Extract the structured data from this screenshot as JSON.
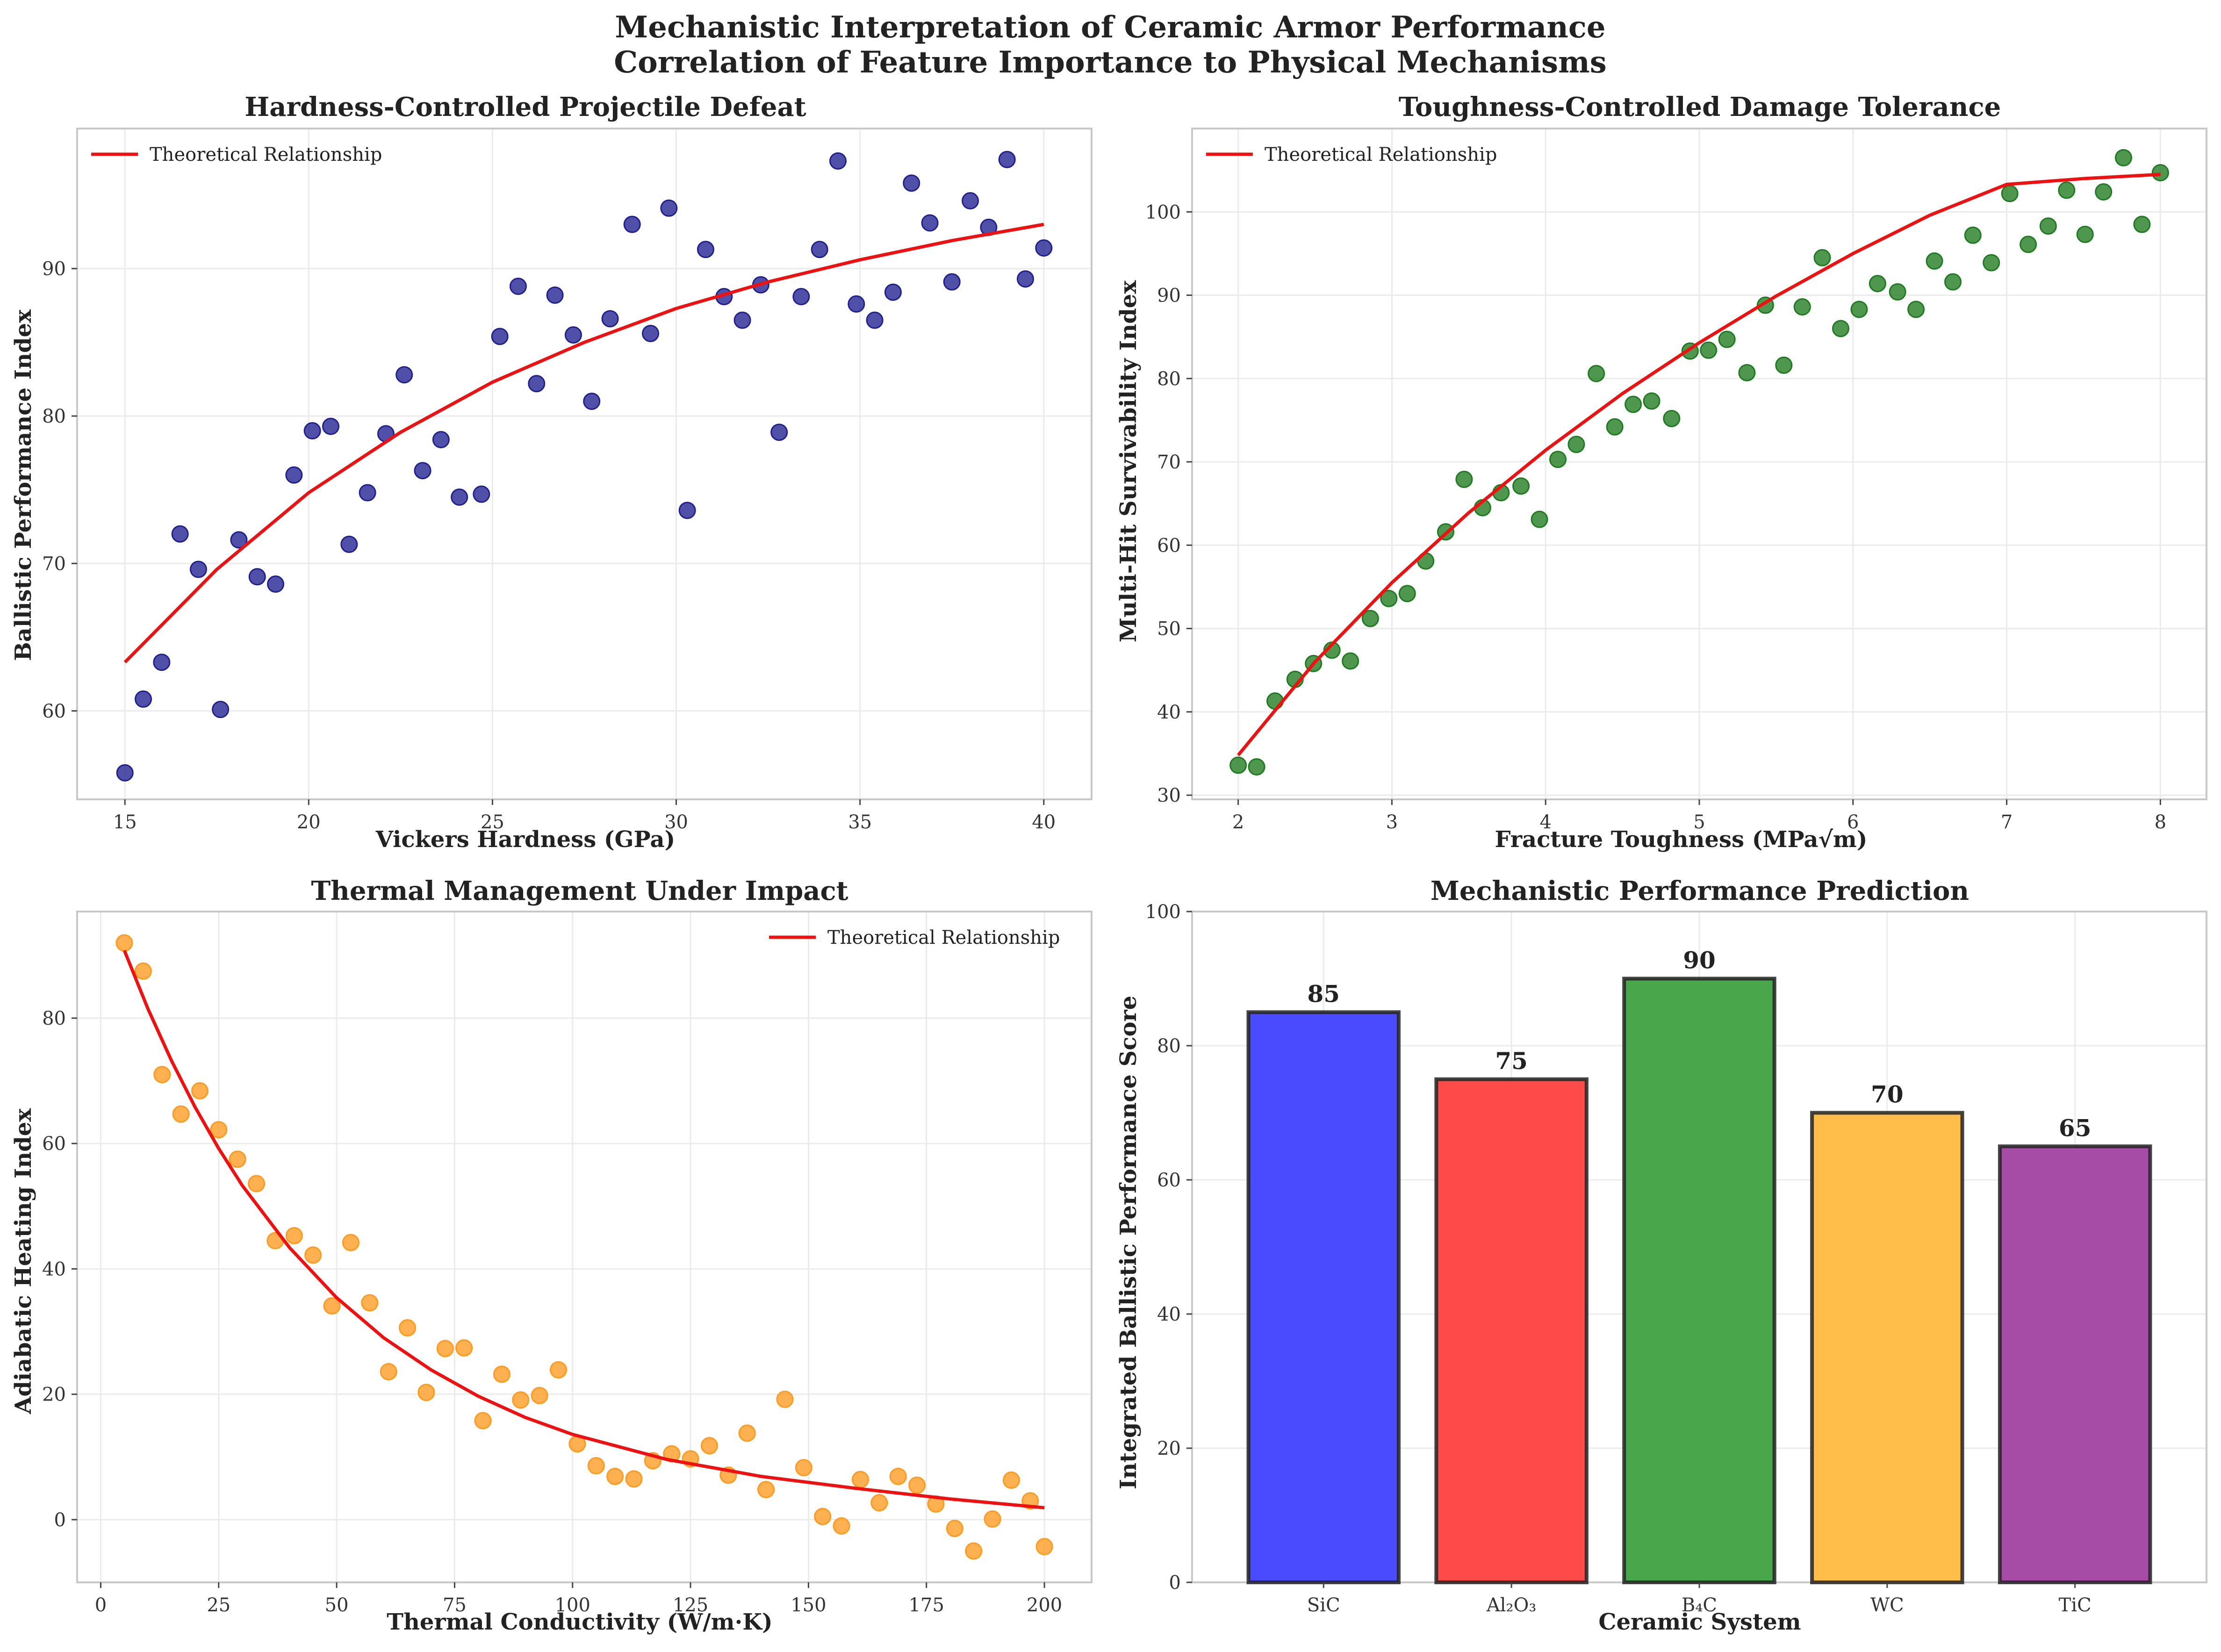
{
  "figure": {
    "title_line1": "Mechanistic Interpretation of Ceramic Armor Performance",
    "title_line2": "Correlation of Feature Importance to Physical Mechanisms"
  },
  "chart_data": [
    {
      "type": "scatter",
      "title": "Hardness-Controlled Projectile Defeat",
      "xlabel": "Vickers Hardness (GPa)",
      "ylabel": "Ballistic Performance Index",
      "xlim": [
        13.7,
        41.3
      ],
      "ylim": [
        54,
        99.5
      ],
      "xticks": [
        15,
        20,
        25,
        30,
        35,
        40
      ],
      "yticks": [
        60,
        70,
        80,
        90
      ],
      "grid": true,
      "legend": {
        "position": "top-left",
        "entries": [
          "Theoretical Relationship"
        ]
      },
      "point_color": "#1f1f8f",
      "line_color": "#ee1111",
      "series": [
        {
          "kind": "points",
          "x": [
            15.0,
            15.5,
            16.0,
            16.5,
            17.0,
            17.6,
            18.1,
            18.6,
            19.1,
            19.6,
            20.1,
            20.6,
            21.1,
            21.6,
            22.1,
            22.6,
            23.1,
            23.6,
            24.1,
            24.7,
            25.2,
            25.7,
            26.2,
            26.7,
            27.2,
            27.7,
            28.2,
            28.8,
            29.3,
            29.8,
            30.3,
            30.8,
            31.3,
            31.8,
            32.3,
            32.8,
            33.4,
            33.9,
            34.4,
            34.9,
            35.4,
            35.9,
            36.4,
            36.9,
            37.5,
            38.0,
            38.5,
            39.0,
            39.5,
            40.0
          ],
          "y": [
            55.8,
            60.8,
            63.3,
            72.0,
            69.6,
            60.1,
            71.6,
            69.1,
            68.6,
            76.0,
            79.0,
            79.3,
            71.3,
            74.8,
            78.8,
            82.8,
            76.3,
            78.4,
            74.5,
            74.7,
            85.4,
            88.8,
            82.2,
            88.2,
            85.5,
            81.0,
            86.6,
            93.0,
            85.6,
            94.1,
            73.6,
            91.3,
            88.1,
            86.5,
            88.9,
            78.9,
            88.1,
            91.3,
            97.3,
            87.6,
            86.5,
            88.4,
            95.8,
            93.1,
            89.1,
            94.6,
            92.8,
            97.4,
            89.3,
            91.4
          ]
        },
        {
          "kind": "line",
          "name": "Theoretical Relationship",
          "x": [
            15,
            17.5,
            20,
            22.5,
            25,
            27.5,
            30,
            32.5,
            35,
            37.5,
            40
          ],
          "y": [
            63.3,
            69.6,
            74.8,
            78.9,
            82.3,
            85.0,
            87.3,
            89.1,
            90.6,
            91.9,
            93.0
          ]
        }
      ]
    },
    {
      "type": "scatter",
      "title": "Toughness-Controlled Damage Tolerance",
      "xlabel": "Fracture Toughness (MPa√m)",
      "ylabel": "Multi-Hit Survivability Index",
      "xlim": [
        1.7,
        8.3
      ],
      "ylim": [
        29.5,
        110
      ],
      "xticks": [
        2,
        3,
        4,
        5,
        6,
        7,
        8
      ],
      "yticks": [
        30,
        40,
        50,
        60,
        70,
        80,
        90,
        100
      ],
      "grid": true,
      "legend": {
        "position": "top-left",
        "entries": [
          "Theoretical Relationship"
        ]
      },
      "point_color": "#1e7a1e",
      "line_color": "#ee1111",
      "series": [
        {
          "kind": "points",
          "x": [
            2.0,
            2.12,
            2.24,
            2.37,
            2.49,
            2.61,
            2.73,
            2.86,
            2.98,
            3.1,
            3.22,
            3.35,
            3.47,
            3.59,
            3.71,
            3.84,
            3.96,
            4.08,
            4.2,
            4.33,
            4.45,
            4.57,
            4.69,
            4.82,
            4.94,
            5.06,
            5.18,
            5.31,
            5.43,
            5.55,
            5.67,
            5.8,
            5.92,
            6.04,
            6.16,
            6.29,
            6.41,
            6.53,
            6.65,
            6.78,
            6.9,
            7.02,
            7.14,
            7.27,
            7.39,
            7.51,
            7.63,
            7.76,
            7.88,
            8.0
          ],
          "y": [
            33.6,
            33.4,
            41.3,
            43.9,
            45.8,
            47.4,
            46.1,
            51.2,
            53.6,
            54.2,
            58.1,
            61.6,
            67.9,
            64.5,
            66.3,
            67.1,
            63.1,
            70.3,
            72.1,
            80.6,
            74.2,
            76.9,
            77.3,
            75.2,
            83.3,
            83.4,
            84.7,
            80.7,
            88.8,
            81.6,
            88.6,
            94.5,
            86.0,
            88.3,
            91.4,
            90.4,
            88.3,
            94.1,
            91.6,
            97.2,
            93.9,
            102.2,
            96.1,
            98.3,
            102.6,
            97.3,
            102.4,
            106.5,
            98.5,
            104.7
          ]
        },
        {
          "kind": "line",
          "name": "Theoretical Relationship",
          "x": [
            2,
            2.5,
            3,
            3.5,
            4,
            4.5,
            5,
            5.5,
            6,
            6.5,
            7,
            7.5,
            8
          ],
          "y": [
            34.8,
            46.0,
            55.5,
            63.9,
            71.4,
            78.2,
            84.3,
            89.9,
            95.0,
            99.6,
            103.3,
            104.0,
            104.5
          ]
        }
      ]
    },
    {
      "type": "scatter",
      "title": "Thermal Management Under Impact",
      "xlabel": "Thermal Conductivity (W/m·K)",
      "ylabel": "Adiabatic Heating Index",
      "xlim": [
        -5,
        210
      ],
      "ylim": [
        -10,
        97
      ],
      "xticks": [
        0,
        25,
        50,
        75,
        100,
        125,
        150,
        175,
        200
      ],
      "yticks": [
        0,
        20,
        40,
        60,
        80
      ],
      "grid": true,
      "legend": {
        "position": "top-right",
        "entries": [
          "Theoretical Relationship"
        ]
      },
      "point_color": "#ff9a1f",
      "line_color": "#ee1111",
      "series": [
        {
          "kind": "points",
          "x": [
            5,
            9,
            13,
            17,
            21,
            25,
            29,
            33,
            37,
            41,
            45,
            49,
            53,
            57,
            61,
            65,
            69,
            73,
            77,
            81,
            85,
            89,
            93,
            97,
            101,
            105,
            109,
            113,
            117,
            121,
            125,
            129,
            133,
            137,
            141,
            145,
            149,
            153,
            157,
            161,
            165,
            169,
            173,
            177,
            181,
            185,
            189,
            193,
            197,
            200
          ],
          "y": [
            92.0,
            87.5,
            71.0,
            64.7,
            68.4,
            62.2,
            57.5,
            53.6,
            44.5,
            45.3,
            42.2,
            34.1,
            44.2,
            34.6,
            23.6,
            30.6,
            20.3,
            27.3,
            27.4,
            15.8,
            23.2,
            19.1,
            19.8,
            23.9,
            12.1,
            8.6,
            6.9,
            6.5,
            9.4,
            10.5,
            9.7,
            11.8,
            7.1,
            13.8,
            4.8,
            19.2,
            8.3,
            0.5,
            -1.0,
            6.4,
            2.7,
            6.9,
            5.5,
            2.5,
            -1.4,
            -5.0,
            0.1,
            6.3,
            3.0,
            -4.3
          ]
        },
        {
          "kind": "line",
          "name": "Theoretical Relationship",
          "x": [
            5,
            10,
            15,
            20,
            25,
            30,
            40,
            50,
            60,
            70,
            80,
            90,
            100,
            120,
            140,
            160,
            180,
            200
          ],
          "y": [
            90.8,
            81.5,
            73.2,
            65.8,
            59.2,
            53.3,
            43.4,
            35.4,
            29.0,
            23.9,
            19.7,
            16.3,
            13.6,
            9.6,
            6.9,
            5.0,
            3.3,
            1.9
          ]
        }
      ]
    },
    {
      "type": "bar",
      "title": "Mechanistic Performance Prediction",
      "xlabel": "Ceramic System",
      "ylabel": "Integrated Ballistic Performance Score",
      "ylim": [
        0,
        100
      ],
      "yticks": [
        0,
        20,
        40,
        60,
        80,
        100
      ],
      "grid": true,
      "categories": [
        "SiC",
        "Al₂O₃",
        "B₄C",
        "WC",
        "TiC"
      ],
      "values": [
        85,
        75,
        90,
        70,
        65
      ],
      "value_labels": [
        "85",
        "75",
        "90",
        "70",
        "65"
      ],
      "colors": [
        "#4a4aff",
        "#ff4a4a",
        "#4aa64a",
        "#ffbd4a",
        "#a64ca6"
      ]
    }
  ]
}
